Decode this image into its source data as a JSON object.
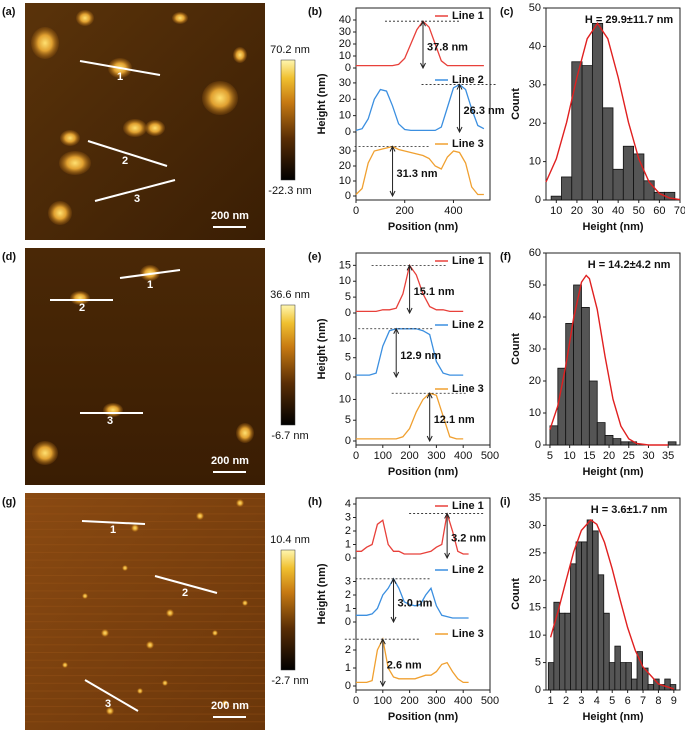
{
  "images": [
    {
      "label": "(a)",
      "colorbar_max": "70.2 nm",
      "colorbar_min": "-22.3 nm",
      "scalebar": "200 nm",
      "line_labels": [
        "1",
        "2",
        "3"
      ]
    },
    {
      "label": "(d)",
      "colorbar_max": "36.6 nm",
      "colorbar_min": "-6.7 nm",
      "scalebar": "200 nm",
      "line_labels": [
        "1",
        "2",
        "3"
      ]
    },
    {
      "label": "(g)",
      "colorbar_max": "10.4 nm",
      "colorbar_min": "-2.7 nm",
      "scalebar": "200 nm",
      "line_labels": [
        "1",
        "2",
        "3"
      ]
    }
  ],
  "chart_data": [
    {
      "type": "line",
      "label": "(b)",
      "xlabel": "Position (nm)",
      "ylabel": "Height (nm)",
      "xlim": [
        0,
        550
      ],
      "xticks": [
        0,
        200,
        400
      ],
      "x": [
        0,
        25,
        50,
        75,
        100,
        125,
        150,
        175,
        200,
        225,
        250,
        275,
        300,
        325,
        350,
        375,
        400,
        425,
        450,
        475,
        500,
        525
      ],
      "series": [
        {
          "name": "Line 1",
          "color": "#e8403a",
          "ylim": [
            0,
            45
          ],
          "yticks": [
            0,
            10,
            20,
            30,
            40
          ],
          "annotation": "37.8 nm",
          "values": [
            2,
            2,
            2,
            2,
            2,
            2,
            2,
            3,
            8,
            20,
            32,
            39,
            34,
            20,
            6,
            2,
            2,
            2,
            2,
            2,
            2,
            2
          ]
        },
        {
          "name": "Line 2",
          "color": "#3b8fe0",
          "ylim": [
            0,
            33
          ],
          "yticks": [
            0,
            10,
            20,
            30
          ],
          "annotation": "26.3 nm",
          "values": [
            1,
            2,
            8,
            20,
            26,
            25,
            16,
            5,
            1.5,
            1,
            1,
            1,
            1,
            1,
            3,
            15,
            27,
            29,
            26,
            14,
            4,
            2
          ]
        },
        {
          "name": "Line 3",
          "color": "#f0a030",
          "ylim": [
            0,
            36
          ],
          "yticks": [
            0,
            10,
            20,
            30
          ],
          "annotation": "31.3 nm",
          "values": [
            1,
            5,
            22,
            30,
            31,
            32,
            33,
            31,
            30,
            29,
            28,
            27,
            25,
            20,
            18,
            26,
            30,
            29,
            22,
            6,
            1,
            1
          ]
        }
      ]
    },
    {
      "type": "histogram",
      "label": "(c)",
      "title": "H = 29.9±11.7 nm",
      "xlabel": "Height (nm)",
      "ylabel": "Count",
      "xlim": [
        5,
        70
      ],
      "xticks": [
        10,
        20,
        30,
        40,
        50,
        60,
        70
      ],
      "ylim": [
        0,
        50
      ],
      "yticks": [
        0,
        10,
        20,
        30,
        40,
        50
      ],
      "bins": [
        7.5,
        12.5,
        17.5,
        22.5,
        27.5,
        32.5,
        37.5,
        42.5,
        47.5,
        52.5,
        57.5,
        62.5,
        67.5
      ],
      "values": [
        1,
        6,
        36,
        35,
        46,
        24,
        8,
        14,
        12,
        5,
        2,
        2
      ],
      "color": "#555555",
      "fit": {
        "color": "#e02020",
        "x": [
          5,
          10,
          15,
          20,
          25,
          30,
          35,
          40,
          45,
          50,
          55,
          60,
          65,
          70
        ],
        "values": [
          4.7,
          10.7,
          20.2,
          31.9,
          42,
          46,
          42,
          31.9,
          20.2,
          10.7,
          4.7,
          1.7,
          0.5,
          0.1
        ]
      }
    },
    {
      "type": "line",
      "label": "(e)",
      "xlabel": "Position (nm)",
      "ylabel": "Height (nm)",
      "xlim": [
        0,
        500
      ],
      "xticks": [
        0,
        100,
        200,
        300,
        400,
        500
      ],
      "x": [
        0,
        25,
        50,
        75,
        100,
        125,
        150,
        175,
        200,
        225,
        250,
        275,
        300,
        325,
        350,
        375,
        400
      ],
      "series": [
        {
          "name": "Line 1",
          "color": "#e8403a",
          "ylim": [
            0,
            17
          ],
          "yticks": [
            0,
            5,
            10,
            15
          ],
          "annotation": "15.1 nm",
          "values": [
            0.5,
            0.5,
            0.5,
            0.5,
            1,
            1,
            1.5,
            6,
            15,
            12,
            6,
            2,
            1,
            1,
            0.5,
            0.5,
            0.5
          ]
        },
        {
          "name": "Line 2",
          "color": "#3b8fe0",
          "ylim": [
            0,
            14
          ],
          "yticks": [
            0,
            5,
            10
          ],
          "annotation": "12.9 nm",
          "values": [
            0.5,
            0.5,
            0.5,
            1,
            8,
            12,
            12.5,
            12.5,
            12.5,
            12.5,
            12,
            11,
            4,
            1,
            0.5,
            0.5,
            0.5
          ]
        },
        {
          "name": "Line 3",
          "color": "#f0a030",
          "ylim": [
            0,
            13
          ],
          "yticks": [
            0,
            5,
            10
          ],
          "annotation": "12.1 nm",
          "values": [
            0.5,
            0.5,
            0.5,
            0.5,
            0.5,
            0.5,
            0.5,
            1,
            3,
            7,
            10,
            11.5,
            11,
            6,
            1,
            0.5,
            0.5
          ]
        }
      ]
    },
    {
      "type": "histogram",
      "label": "(f)",
      "title": "H = 14.2±4.2 nm",
      "xlabel": "Height (nm)",
      "ylabel": "Count",
      "xlim": [
        4,
        38
      ],
      "xticks": [
        5,
        10,
        15,
        20,
        25,
        30,
        35
      ],
      "ylim": [
        0,
        60
      ],
      "yticks": [
        0,
        10,
        20,
        30,
        40,
        50,
        60
      ],
      "bins": [
        5,
        7,
        9,
        11,
        13,
        15,
        17,
        19,
        21,
        23,
        25,
        27,
        29,
        31,
        33,
        35,
        37
      ],
      "values": [
        6,
        24,
        38,
        50,
        43,
        20,
        7,
        3,
        2,
        1,
        1,
        0,
        0,
        0,
        0,
        1
      ],
      "color": "#555555",
      "fit": {
        "color": "#e02020",
        "x": [
          5,
          7,
          9,
          11,
          13,
          14.2,
          15,
          17,
          19,
          21,
          23,
          25,
          27,
          30,
          35
        ],
        "values": [
          4.8,
          12.2,
          24.6,
          39.6,
          50.9,
          53,
          52,
          42.4,
          27.6,
          14.3,
          5.9,
          1.9,
          0.5,
          0,
          0
        ]
      }
    },
    {
      "type": "line",
      "label": "(h)",
      "xlabel": "Position (nm)",
      "ylabel": "Height (nm)",
      "xlim": [
        0,
        500
      ],
      "xticks": [
        0,
        100,
        200,
        300,
        400,
        500
      ],
      "x": [
        0,
        20,
        40,
        60,
        80,
        100,
        120,
        140,
        160,
        180,
        200,
        220,
        240,
        260,
        280,
        300,
        320,
        340,
        360,
        380,
        400,
        420
      ],
      "series": [
        {
          "name": "Line 1",
          "color": "#e8403a",
          "ylim": [
            0,
            4
          ],
          "yticks": [
            0,
            1,
            2,
            3,
            4
          ],
          "annotation": "3.2 nm",
          "values": [
            0.5,
            0.5,
            0.8,
            1,
            2.5,
            2.8,
            1,
            0.5,
            0.5,
            0.3,
            0.3,
            0.3,
            0.3,
            0.4,
            0.5,
            0.8,
            1,
            3.3,
            2,
            0.5,
            0.3,
            0.3
          ]
        },
        {
          "name": "Line 2",
          "color": "#3b8fe0",
          "ylim": [
            0,
            4
          ],
          "yticks": [
            0,
            1,
            2,
            3
          ],
          "annotation": "3.0 nm",
          "values": [
            0.5,
            0.5,
            0.5,
            0.6,
            1,
            2,
            2.5,
            3.2,
            2.5,
            1.5,
            1.3,
            1.2,
            1.3,
            2,
            2.5,
            1.2,
            0.5,
            0.4,
            0.3,
            0.3,
            0.3,
            0.3
          ]
        },
        {
          "name": "Line 3",
          "color": "#f0a030",
          "ylim": [
            0,
            3
          ],
          "yticks": [
            0,
            1,
            2
          ],
          "annotation": "2.6 nm",
          "values": [
            0.2,
            0.2,
            0.2,
            0.3,
            2,
            2.6,
            1,
            0.5,
            0.4,
            0.4,
            0.4,
            0.4,
            0.5,
            0.6,
            0.6,
            0.8,
            1.2,
            1.3,
            0.8,
            0.4,
            0.2,
            0.2
          ]
        }
      ]
    },
    {
      "type": "histogram",
      "label": "(i)",
      "title": "H = 3.6±1.7 nm",
      "xlabel": "Height (nm)",
      "ylabel": "Count",
      "xlim": [
        0.7,
        9.4
      ],
      "xticks": [
        1,
        2,
        3,
        4,
        5,
        6,
        7,
        8,
        9
      ],
      "ylim": [
        0,
        35
      ],
      "yticks": [
        0,
        5,
        10,
        15,
        20,
        25,
        30,
        35
      ],
      "bins": [
        0.85,
        1.21,
        1.57,
        1.93,
        2.29,
        2.65,
        3.01,
        3.37,
        3.73,
        4.09,
        4.45,
        4.81,
        5.17,
        5.53,
        5.89,
        6.25,
        6.61,
        6.97,
        7.33,
        7.69,
        8.05,
        8.41,
        8.77,
        9.13
      ],
      "values": [
        5,
        16,
        14,
        14,
        23,
        27,
        27,
        31,
        29,
        21,
        14,
        5,
        8,
        5,
        5,
        2,
        7,
        4,
        1,
        2,
        1,
        2,
        1
      ],
      "color": "#555555",
      "fit": {
        "color": "#e02020",
        "x": [
          1,
          1.5,
          2,
          2.5,
          3,
          3.6,
          4,
          4.5,
          5,
          5.5,
          6,
          6.5,
          7,
          8,
          9
        ],
        "values": [
          9.6,
          14.5,
          19.9,
          25.2,
          29.1,
          31,
          30.2,
          26.9,
          22.1,
          16.6,
          11.4,
          7.2,
          4.2,
          1.1,
          0.2
        ]
      }
    }
  ]
}
